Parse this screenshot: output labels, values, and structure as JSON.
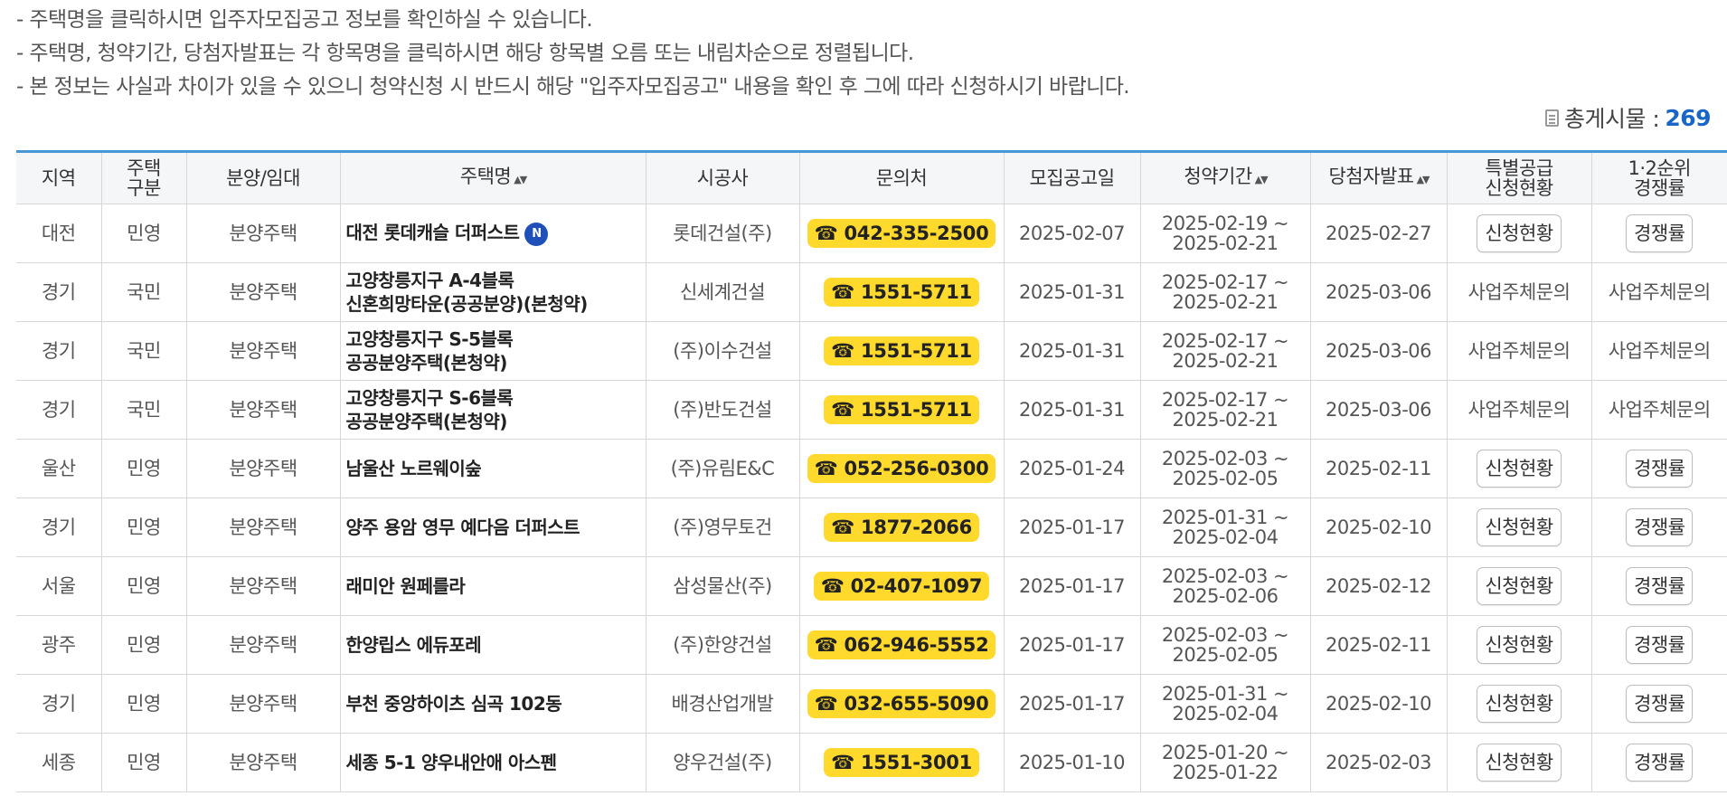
{
  "notes": [
    "-  주택명을 클릭하시면 입주자모집공고 정보를 확인하실 수 있습니다.",
    "-  주택명, 청약기간, 당첨자발표는 각 항목명을 클릭하시면 해당 항목별 오름 또는 내림차순으로 정렬됩니다.",
    "-  본 정보는 사실과 차이가 있을 수 있으니 청약신청 시 반드시 해당 \"입주자모집공고\" 내용을 확인 후 그에 따라 신청하시기 바랍니다."
  ],
  "total": {
    "label": "총게시물 :",
    "count": "269"
  },
  "headers": {
    "region": "지역",
    "housing_type_l1": "주택",
    "housing_type_l2": "구분",
    "supply_type": "분양/임대",
    "house_name": "주택명",
    "builder": "시공사",
    "contact": "문의처",
    "notice_date": "모집공고일",
    "period": "청약기간",
    "winner_date": "당첨자발표",
    "special_l1": "특별공급",
    "special_l2": "신청현황",
    "rank_l1": "1·2순위",
    "rank_l2": "경쟁률"
  },
  "sort_glyph": "▲▼",
  "icons": {
    "sort": "sort-updown-icon",
    "new": "new-badge-icon",
    "phone": "phone-icon",
    "total": "document-icon"
  },
  "colors": {
    "header_top_border": "#4a97d6",
    "phone_bg": "#ffd92b",
    "count": "#1a66c8",
    "new_badge": "#1f4fb8"
  },
  "new_badge_text": "N",
  "phone_glyph": "☎",
  "rows": [
    {
      "region": "대전",
      "type": "민영",
      "supply": "분양주택",
      "name1": "대전 롯데캐슬 더퍼스트",
      "name2": "",
      "is_new": true,
      "builder": "롯데건설(주)",
      "phone": "042-335-2500",
      "notice": "2025-02-07",
      "period_start": "2025-02-19 ~",
      "period_end": "2025-02-21",
      "winner": "2025-02-27",
      "special": "신청현황",
      "special_btn": true,
      "rank": "경쟁률",
      "rank_btn": true
    },
    {
      "region": "경기",
      "type": "국민",
      "supply": "분양주택",
      "name1": "고양창릉지구 A-4블록",
      "name2": "신혼희망타운(공공분양)(본청약)",
      "is_new": false,
      "builder": "신세계건설",
      "phone": "1551-5711",
      "notice": "2025-01-31",
      "period_start": "2025-02-17 ~",
      "period_end": "2025-02-21",
      "winner": "2025-03-06",
      "special": "사업주체문의",
      "special_btn": false,
      "rank": "사업주체문의",
      "rank_btn": false
    },
    {
      "region": "경기",
      "type": "국민",
      "supply": "분양주택",
      "name1": "고양창릉지구 S-5블록",
      "name2": "공공분양주택(본청약)",
      "is_new": false,
      "builder": "(주)이수건설",
      "phone": "1551-5711",
      "notice": "2025-01-31",
      "period_start": "2025-02-17 ~",
      "period_end": "2025-02-21",
      "winner": "2025-03-06",
      "special": "사업주체문의",
      "special_btn": false,
      "rank": "사업주체문의",
      "rank_btn": false
    },
    {
      "region": "경기",
      "type": "국민",
      "supply": "분양주택",
      "name1": "고양창릉지구 S-6블록",
      "name2": "공공분양주택(본청약)",
      "is_new": false,
      "builder": "(주)반도건설",
      "phone": "1551-5711",
      "notice": "2025-01-31",
      "period_start": "2025-02-17 ~",
      "period_end": "2025-02-21",
      "winner": "2025-03-06",
      "special": "사업주체문의",
      "special_btn": false,
      "rank": "사업주체문의",
      "rank_btn": false
    },
    {
      "region": "울산",
      "type": "민영",
      "supply": "분양주택",
      "name1": "남울산 노르웨이숲",
      "name2": "",
      "is_new": false,
      "builder": "(주)유림E&C",
      "phone": "052-256-0300",
      "notice": "2025-01-24",
      "period_start": "2025-02-03 ~",
      "period_end": "2025-02-05",
      "winner": "2025-02-11",
      "special": "신청현황",
      "special_btn": true,
      "rank": "경쟁률",
      "rank_btn": true
    },
    {
      "region": "경기",
      "type": "민영",
      "supply": "분양주택",
      "name1": "양주 용암 영무 예다음 더퍼스트",
      "name2": "",
      "is_new": false,
      "builder": "(주)영무토건",
      "phone": "1877-2066",
      "notice": "2025-01-17",
      "period_start": "2025-01-31 ~",
      "period_end": "2025-02-04",
      "winner": "2025-02-10",
      "special": "신청현황",
      "special_btn": true,
      "rank": "경쟁률",
      "rank_btn": true
    },
    {
      "region": "서울",
      "type": "민영",
      "supply": "분양주택",
      "name1": "래미안 원페를라",
      "name2": "",
      "is_new": false,
      "builder": "삼성물산(주)",
      "phone": "02-407-1097",
      "notice": "2025-01-17",
      "period_start": "2025-02-03 ~",
      "period_end": "2025-02-06",
      "winner": "2025-02-12",
      "special": "신청현황",
      "special_btn": true,
      "rank": "경쟁률",
      "rank_btn": true
    },
    {
      "region": "광주",
      "type": "민영",
      "supply": "분양주택",
      "name1": "한양립스 에듀포레",
      "name2": "",
      "is_new": false,
      "builder": "(주)한양건설",
      "phone": "062-946-5552",
      "notice": "2025-01-17",
      "period_start": "2025-02-03 ~",
      "period_end": "2025-02-05",
      "winner": "2025-02-11",
      "special": "신청현황",
      "special_btn": true,
      "rank": "경쟁률",
      "rank_btn": true
    },
    {
      "region": "경기",
      "type": "민영",
      "supply": "분양주택",
      "name1": "부천 중앙하이츠 심곡 102동",
      "name2": "",
      "is_new": false,
      "builder": "배경산업개발",
      "phone": "032-655-5090",
      "notice": "2025-01-17",
      "period_start": "2025-01-31 ~",
      "period_end": "2025-02-04",
      "winner": "2025-02-10",
      "special": "신청현황",
      "special_btn": true,
      "rank": "경쟁률",
      "rank_btn": true
    },
    {
      "region": "세종",
      "type": "민영",
      "supply": "분양주택",
      "name1": "세종 5-1 양우내안애 아스펜",
      "name2": "",
      "is_new": false,
      "builder": "양우건설(주)",
      "phone": "1551-3001",
      "notice": "2025-01-10",
      "period_start": "2025-01-20 ~",
      "period_end": "2025-01-22",
      "winner": "2025-02-03",
      "special": "신청현황",
      "special_btn": true,
      "rank": "경쟁률",
      "rank_btn": true
    }
  ]
}
